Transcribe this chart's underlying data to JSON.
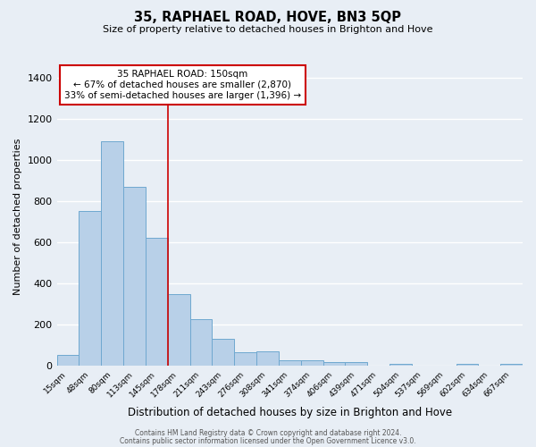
{
  "title": "35, RAPHAEL ROAD, HOVE, BN3 5QP",
  "subtitle": "Size of property relative to detached houses in Brighton and Hove",
  "xlabel": "Distribution of detached houses by size in Brighton and Hove",
  "ylabel": "Number of detached properties",
  "bar_color": "#b8d0e8",
  "bar_edge_color": "#6fa8d0",
  "background_color": "#e8eef5",
  "annotation_box_color": "#ffffff",
  "annotation_box_edge": "#cc0000",
  "vline_color": "#cc0000",
  "categories": [
    "15sqm",
    "48sqm",
    "80sqm",
    "113sqm",
    "145sqm",
    "178sqm",
    "211sqm",
    "243sqm",
    "276sqm",
    "308sqm",
    "341sqm",
    "374sqm",
    "406sqm",
    "439sqm",
    "471sqm",
    "504sqm",
    "537sqm",
    "569sqm",
    "602sqm",
    "634sqm",
    "667sqm"
  ],
  "values": [
    55,
    750,
    1090,
    870,
    620,
    350,
    225,
    130,
    65,
    70,
    25,
    25,
    20,
    20,
    0,
    10,
    0,
    0,
    10,
    0,
    10
  ],
  "ylim": [
    0,
    1450
  ],
  "yticks": [
    0,
    200,
    400,
    600,
    800,
    1000,
    1200,
    1400
  ],
  "vline_index": 4,
  "annotation_line1": "35 RAPHAEL ROAD: 150sqm",
  "annotation_line2": "← 67% of detached houses are smaller (2,870)",
  "annotation_line3": "33% of semi-detached houses are larger (1,396) →",
  "footer1": "Contains HM Land Registry data © Crown copyright and database right 2024.",
  "footer2": "Contains public sector information licensed under the Open Government Licence v3.0."
}
